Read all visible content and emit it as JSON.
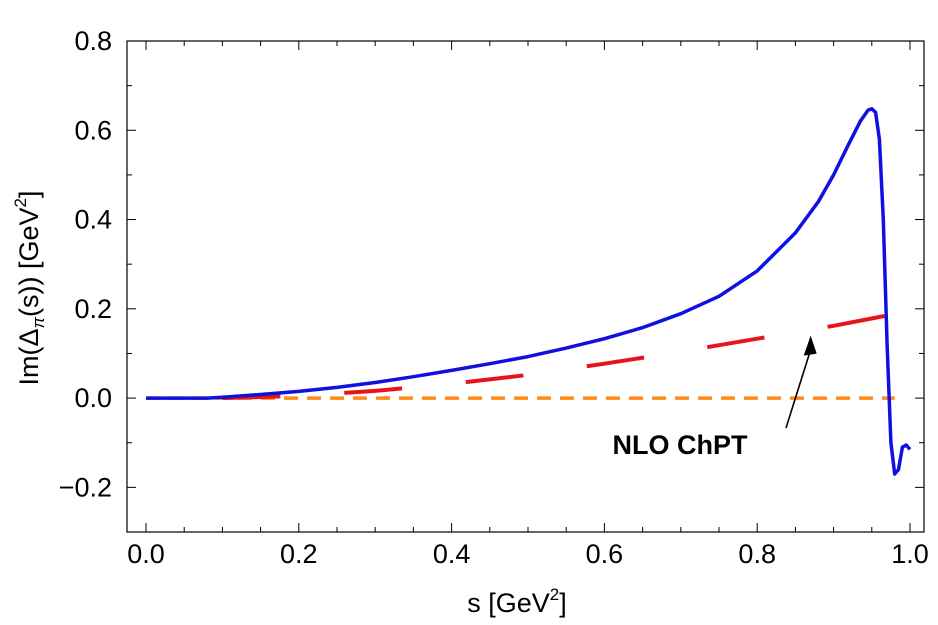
{
  "chart_data": {
    "type": "line",
    "title": "",
    "xlabel": {
      "main": "s [GeV",
      "sup": "2",
      "close": "]"
    },
    "ylabel": {
      "pre": "Im(Δ",
      "sub": "π",
      "mid": "(s)) [GeV",
      "sup": "2",
      "close": "]"
    },
    "xlim": [
      0.0,
      1.0
    ],
    "ylim": [
      -0.3,
      0.8
    ],
    "x_ticks": [
      "0.0",
      "0.2",
      "0.4",
      "0.6",
      "0.8",
      "1.0"
    ],
    "y_ticks": [
      "−0.2",
      "0.0",
      "0.2",
      "0.4",
      "0.6",
      "0.8"
    ],
    "grid": false,
    "series": [
      {
        "style": "solid",
        "color": "#1010e0",
        "x": [
          0.0,
          0.05,
          0.08,
          0.1,
          0.15,
          0.2,
          0.25,
          0.3,
          0.35,
          0.4,
          0.45,
          0.5,
          0.55,
          0.6,
          0.65,
          0.7,
          0.75,
          0.8,
          0.85,
          0.88,
          0.9,
          0.92,
          0.935,
          0.945,
          0.95,
          0.955,
          0.96,
          0.965,
          0.97,
          0.975,
          0.98,
          0.985,
          0.99,
          0.995,
          1.0
        ],
        "y": [
          0.0,
          0.0,
          0.0,
          0.002,
          0.008,
          0.015,
          0.024,
          0.035,
          0.048,
          0.062,
          0.077,
          0.093,
          0.112,
          0.133,
          0.158,
          0.189,
          0.228,
          0.285,
          0.37,
          0.44,
          0.5,
          0.57,
          0.62,
          0.645,
          0.648,
          0.64,
          0.58,
          0.4,
          0.12,
          -0.1,
          -0.17,
          -0.16,
          -0.11,
          -0.105,
          -0.115
        ]
      },
      {
        "style": "long-dash",
        "color": "#e8141c",
        "x": [
          0.1,
          0.2,
          0.3,
          0.4,
          0.5,
          0.6,
          0.7,
          0.8,
          0.9,
          1.0
        ],
        "y": [
          0.0,
          0.005,
          0.016,
          0.032,
          0.052,
          0.077,
          0.104,
          0.133,
          0.162,
          0.195
        ]
      },
      {
        "style": "dashed",
        "color": "#ff8c1a",
        "x": [
          0.0,
          0.98
        ],
        "y": [
          0.0,
          0.0
        ]
      }
    ],
    "annotations": [
      {
        "text": "NLO ChPT",
        "arrow_target": [
          0.87,
          0.14
        ]
      }
    ]
  }
}
